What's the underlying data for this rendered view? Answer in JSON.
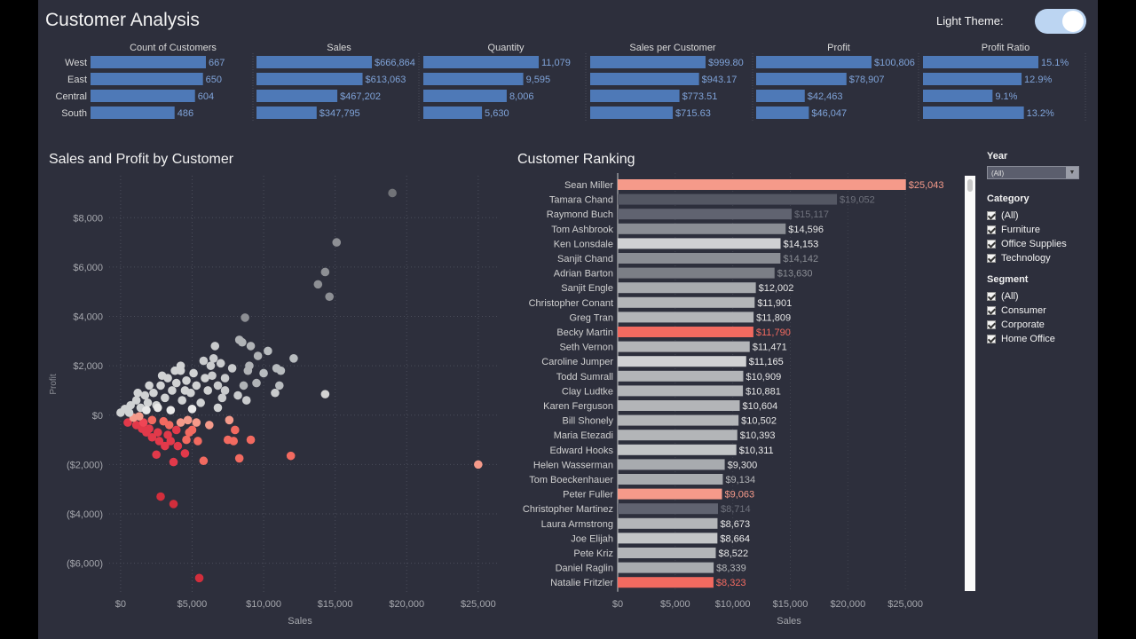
{
  "header": {
    "title": "Customer Analysis",
    "theme_label": "Light Theme:"
  },
  "kpi": {
    "regions": [
      "West",
      "East",
      "Central",
      "South"
    ],
    "metrics": [
      {
        "title": "Count of Customers",
        "values": [
          667,
          650,
          604,
          486
        ],
        "labels": [
          "667",
          "650",
          "604",
          "486"
        ]
      },
      {
        "title": "Sales",
        "values": [
          666864,
          613063,
          467202,
          347795
        ],
        "labels": [
          "$666,864",
          "$613,063",
          "$467,202",
          "$347,795"
        ]
      },
      {
        "title": "Quantity",
        "values": [
          11079,
          9595,
          8006,
          5630
        ],
        "labels": [
          "11,079",
          "9,595",
          "8,006",
          "5,630"
        ]
      },
      {
        "title": "Sales per Customer",
        "values": [
          999.8,
          943.17,
          773.51,
          715.63
        ],
        "labels": [
          "$999.80",
          "$943.17",
          "$773.51",
          "$715.63"
        ]
      },
      {
        "title": "Profit",
        "values": [
          100806,
          78907,
          42463,
          46047
        ],
        "labels": [
          "$100,806",
          "$78,907",
          "$42,463",
          "$46,047"
        ]
      },
      {
        "title": "Profit Ratio",
        "values": [
          15.1,
          12.9,
          9.1,
          13.2
        ],
        "labels": [
          "15.1%",
          "12.9%",
          "9.1%",
          "13.2%"
        ]
      }
    ],
    "bar_color": "#4e79b7",
    "label_color": "#7fa3d9"
  },
  "scatter": {
    "title": "Sales and Profit by Customer",
    "xlabel": "Sales",
    "ylabel": "Profit",
    "xlim": [
      -800,
      26500
    ],
    "ylim": [
      -7200,
      9700
    ],
    "xticks": [
      0,
      5000,
      10000,
      15000,
      20000,
      25000
    ],
    "xtick_labels": [
      "$0",
      "$5,000",
      "$10,000",
      "$15,000",
      "$20,000",
      "$25,000"
    ],
    "yticks": [
      8000,
      6000,
      4000,
      2000,
      0,
      -2000,
      -4000,
      -6000
    ],
    "ytick_labels": [
      "$8,000",
      "$6,000",
      "$4,000",
      "$2,000",
      "$0",
      "($2,000)",
      "($4,000)",
      "($6,000)"
    ]
  },
  "ranking": {
    "title": "Customer Ranking",
    "xlabel": "Sales",
    "xlim": [
      0,
      30000
    ],
    "xticks": [
      0,
      5000,
      10000,
      15000,
      20000,
      25000
    ],
    "xtick_labels": [
      "$0",
      "$5,000",
      "$10,000",
      "$15,000",
      "$20,000",
      "$25,000"
    ]
  },
  "filters": {
    "year": {
      "label": "Year",
      "value": "(All)"
    },
    "category": {
      "label": "Category",
      "options": [
        "(All)",
        "Furniture",
        "Office Supplies",
        "Technology"
      ]
    },
    "segment": {
      "label": "Segment",
      "options": [
        "(All)",
        "Consumer",
        "Corporate",
        "Home Office"
      ]
    }
  },
  "chart_data": [
    {
      "type": "scatter",
      "title": "Sales and Profit by Customer",
      "xlabel": "Sales",
      "ylabel": "Profit",
      "xlim": [
        -800,
        26500
      ],
      "ylim": [
        -7200,
        9700
      ],
      "grid": true,
      "points": [
        {
          "x": 19000,
          "y": 9000,
          "color": "#717378"
        },
        {
          "x": 15100,
          "y": 7000,
          "color": "#8d8f94"
        },
        {
          "x": 14300,
          "y": 5800,
          "color": "#8d8f94"
        },
        {
          "x": 13800,
          "y": 5300,
          "color": "#8d8f94"
        },
        {
          "x": 14600,
          "y": 4800,
          "color": "#8d8f94"
        },
        {
          "x": 8700,
          "y": 3950,
          "color": "#8d8f94"
        },
        {
          "x": 25000,
          "y": -2000,
          "color": "#f59a8a"
        },
        {
          "x": 5500,
          "y": -6600,
          "color": "#d22e3c"
        },
        {
          "x": 2800,
          "y": -3300,
          "color": "#d22e3c"
        },
        {
          "x": 3700,
          "y": -3600,
          "color": "#d22e3c"
        },
        {
          "x": 11900,
          "y": -1650,
          "color": "#f26a60"
        },
        {
          "x": 14300,
          "y": 850,
          "color": "#d4d4d4"
        },
        {
          "x": 8300,
          "y": -1750,
          "color": "#f26a60"
        },
        {
          "x": 5800,
          "y": -1850,
          "color": "#f26a60"
        },
        {
          "x": 4500,
          "y": -1550,
          "color": "#e2394a"
        },
        {
          "x": 10900,
          "y": 1900,
          "color": "#b8bcbf"
        },
        {
          "x": 11200,
          "y": 1800,
          "color": "#b8bcbf"
        },
        {
          "x": 12100,
          "y": 2300,
          "color": "#b8bcbf"
        },
        {
          "x": 10300,
          "y": 2600,
          "color": "#b8bcbf"
        },
        {
          "x": 11100,
          "y": 1200,
          "color": "#b8bcbf"
        },
        {
          "x": 10800,
          "y": 900,
          "color": "#c9cbcd"
        },
        {
          "x": 9100,
          "y": 2800,
          "color": "#b0b3b6"
        },
        {
          "x": 8500,
          "y": 2950,
          "color": "#b0b3b6"
        },
        {
          "x": 8300,
          "y": 3050,
          "color": "#b0b3b6"
        },
        {
          "x": 6600,
          "y": 2800,
          "color": "#c9cbcd"
        },
        {
          "x": 6500,
          "y": 2300,
          "color": "#c9cbcd"
        },
        {
          "x": 9000,
          "y": 2000,
          "color": "#b0b3b6"
        },
        {
          "x": 8600,
          "y": 1200,
          "color": "#b0b3b6"
        },
        {
          "x": 9500,
          "y": 1300,
          "color": "#b0b3b6"
        },
        {
          "x": 7800,
          "y": 1900,
          "color": "#c9cbcd"
        },
        {
          "x": 7300,
          "y": 1500,
          "color": "#c9cbcd"
        },
        {
          "x": 7100,
          "y": 700,
          "color": "#c9cbcd"
        },
        {
          "x": 7600,
          "y": -200,
          "color": "#f59a8a"
        },
        {
          "x": 8000,
          "y": -600,
          "color": "#f26a60"
        },
        {
          "x": 7500,
          "y": -1000,
          "color": "#f26a60"
        },
        {
          "x": 9100,
          "y": -1000,
          "color": "#f26a60"
        },
        {
          "x": 7900,
          "y": -1050,
          "color": "#f26a60"
        },
        {
          "x": 5400,
          "y": -1050,
          "color": "#f26a60"
        },
        {
          "x": 4000,
          "y": -1250,
          "color": "#e2394a"
        },
        {
          "x": 3500,
          "y": -1050,
          "color": "#e2394a"
        },
        {
          "x": 2700,
          "y": -1050,
          "color": "#e2394a"
        },
        {
          "x": 3100,
          "y": -1250,
          "color": "#e2394a"
        },
        {
          "x": 2600,
          "y": -700,
          "color": "#e2394a"
        },
        {
          "x": 3900,
          "y": -600,
          "color": "#e2394a"
        },
        {
          "x": 4800,
          "y": -700,
          "color": "#f26a60"
        },
        {
          "x": 2000,
          "y": -550,
          "color": "#e2394a"
        },
        {
          "x": 1500,
          "y": -550,
          "color": "#e2394a"
        },
        {
          "x": 1100,
          "y": -400,
          "color": "#e2394a"
        },
        {
          "x": 500,
          "y": -300,
          "color": "#e2394a"
        },
        {
          "x": 1600,
          "y": -300,
          "color": "#f04555"
        },
        {
          "x": 2200,
          "y": -200,
          "color": "#f26a60"
        },
        {
          "x": 3000,
          "y": -250,
          "color": "#f26a60"
        },
        {
          "x": 3400,
          "y": -400,
          "color": "#f26a60"
        },
        {
          "x": 4200,
          "y": -300,
          "color": "#f59a8a"
        },
        {
          "x": 5300,
          "y": -300,
          "color": "#f59a8a"
        },
        {
          "x": 6200,
          "y": -400,
          "color": "#f59a8a"
        },
        {
          "x": 4700,
          "y": -200,
          "color": "#f59a8a"
        },
        {
          "x": 900,
          "y": -100,
          "color": "#f59a8a"
        },
        {
          "x": 1300,
          "y": -50,
          "color": "#f59a8a"
        },
        {
          "x": 0,
          "y": 100,
          "color": "#d0d2d3"
        },
        {
          "x": 300,
          "y": 250,
          "color": "#d0d2d3"
        },
        {
          "x": 700,
          "y": 400,
          "color": "#d0d2d3"
        },
        {
          "x": 1100,
          "y": 600,
          "color": "#d0d2d3"
        },
        {
          "x": 1400,
          "y": 300,
          "color": "#d0d2d3"
        },
        {
          "x": 1700,
          "y": 800,
          "color": "#d0d2d3"
        },
        {
          "x": 1900,
          "y": 500,
          "color": "#d0d2d3"
        },
        {
          "x": 2300,
          "y": 900,
          "color": "#d0d2d3"
        },
        {
          "x": 2500,
          "y": 400,
          "color": "#d0d2d3"
        },
        {
          "x": 2800,
          "y": 1200,
          "color": "#d0d2d3"
        },
        {
          "x": 3100,
          "y": 700,
          "color": "#d0d2d3"
        },
        {
          "x": 3300,
          "y": 1500,
          "color": "#d0d2d3"
        },
        {
          "x": 3600,
          "y": 1000,
          "color": "#d0d2d3"
        },
        {
          "x": 3900,
          "y": 1300,
          "color": "#d0d2d3"
        },
        {
          "x": 4200,
          "y": 1800,
          "color": "#d0d2d3"
        },
        {
          "x": 4300,
          "y": 600,
          "color": "#d0d2d3"
        },
        {
          "x": 4600,
          "y": 1400,
          "color": "#d0d2d3"
        },
        {
          "x": 4900,
          "y": 900,
          "color": "#d0d2d3"
        },
        {
          "x": 5100,
          "y": 1700,
          "color": "#d0d2d3"
        },
        {
          "x": 5300,
          "y": 1200,
          "color": "#d0d2d3"
        },
        {
          "x": 5600,
          "y": 500,
          "color": "#d0d2d3"
        },
        {
          "x": 5900,
          "y": 1500,
          "color": "#d0d2d3"
        },
        {
          "x": 6100,
          "y": 1000,
          "color": "#d0d2d3"
        },
        {
          "x": 6300,
          "y": 2000,
          "color": "#c9cbcd"
        },
        {
          "x": 6800,
          "y": 1200,
          "color": "#c9cbcd"
        },
        {
          "x": 4200,
          "y": 2000,
          "color": "#d0d2d3"
        },
        {
          "x": 3800,
          "y": 1800,
          "color": "#d0d2d3"
        },
        {
          "x": 2000,
          "y": 1200,
          "color": "#d0d2d3"
        },
        {
          "x": 2600,
          "y": 300,
          "color": "#e8e8e8"
        },
        {
          "x": 1800,
          "y": 200,
          "color": "#e8e8e8"
        },
        {
          "x": 3500,
          "y": 200,
          "color": "#e8e8e8"
        },
        {
          "x": 5000,
          "y": 250,
          "color": "#e8e8e8"
        },
        {
          "x": 6800,
          "y": 300,
          "color": "#d0d2d3"
        },
        {
          "x": 7300,
          "y": 1000,
          "color": "#c9cbcd"
        },
        {
          "x": 8200,
          "y": 800,
          "color": "#c9cbcd"
        },
        {
          "x": 8800,
          "y": 600,
          "color": "#c9cbcd"
        },
        {
          "x": 8900,
          "y": 1800,
          "color": "#b0b3b6"
        },
        {
          "x": 9600,
          "y": 2400,
          "color": "#b0b3b6"
        },
        {
          "x": 10000,
          "y": 1700,
          "color": "#b8bcbf"
        },
        {
          "x": 7000,
          "y": 2100,
          "color": "#c9cbcd"
        },
        {
          "x": 5800,
          "y": 2200,
          "color": "#c9cbcd"
        },
        {
          "x": 6400,
          "y": 1600,
          "color": "#c9cbcd"
        },
        {
          "x": 4500,
          "y": 1000,
          "color": "#d0d2d3"
        },
        {
          "x": 2900,
          "y": 1600,
          "color": "#d0d2d3"
        },
        {
          "x": 1200,
          "y": 900,
          "color": "#d0d2d3"
        },
        {
          "x": 600,
          "y": 100,
          "color": "#d0d2d3"
        },
        {
          "x": 2200,
          "y": -900,
          "color": "#e2394a"
        },
        {
          "x": 2500,
          "y": -1600,
          "color": "#e2394a"
        },
        {
          "x": 3700,
          "y": -1900,
          "color": "#e2394a"
        },
        {
          "x": 1800,
          "y": -700,
          "color": "#e2394a"
        },
        {
          "x": 3300,
          "y": -800,
          "color": "#e2394a"
        },
        {
          "x": 4600,
          "y": -1000,
          "color": "#f26a60"
        },
        {
          "x": 5000,
          "y": -600,
          "color": "#f26a60"
        }
      ]
    },
    {
      "type": "bar",
      "orientation": "horizontal",
      "title": "Customer Ranking",
      "xlabel": "Sales",
      "xlim": [
        0,
        30000
      ],
      "categories": [
        "Sean Miller",
        "Tamara Chand",
        "Raymond Buch",
        "Tom Ashbrook",
        "Ken Lonsdale",
        "Sanjit Chand",
        "Adrian Barton",
        "Sanjit Engle",
        "Christopher Conant",
        "Greg Tran",
        "Becky Martin",
        "Seth Vernon",
        "Caroline Jumper",
        "Todd Sumrall",
        "Clay Ludtke",
        "Karen Ferguson",
        "Bill Shonely",
        "Maria Etezadi",
        "Edward Hooks",
        "Helen Wasserman",
        "Tom Boeckenhauer",
        "Peter Fuller",
        "Christopher Martinez",
        "Laura Armstrong",
        "Joe Elijah",
        "Pete Kriz",
        "Daniel Raglin",
        "Natalie Fritzler"
      ],
      "values": [
        25043,
        19052,
        15117,
        14596,
        14153,
        14142,
        13630,
        12002,
        11901,
        11809,
        11790,
        11471,
        11165,
        10909,
        10881,
        10604,
        10502,
        10393,
        10311,
        9300,
        9134,
        9063,
        8714,
        8673,
        8664,
        8522,
        8339,
        8323
      ],
      "labels": [
        "$25,043",
        "$19,052",
        "$15,117",
        "$14,596",
        "$14,153",
        "$14,142",
        "$13,630",
        "$12,002",
        "$11,901",
        "$11,809",
        "$11,790",
        "$11,471",
        "$11,165",
        "$10,909",
        "$10,881",
        "$10,604",
        "$10,502",
        "$10,393",
        "$10,311",
        "$9,300",
        "$9,134",
        "$9,063",
        "$8,714",
        "$8,673",
        "$8,664",
        "$8,522",
        "$8,339",
        "$8,323"
      ],
      "colors": [
        "#f59a8a",
        "#545763",
        "#606370",
        "#8a8d94",
        "#d0d1d3",
        "#8a8d94",
        "#7b7e86",
        "#a8abaf",
        "#b3b5b8",
        "#b3b5b8",
        "#f26a60",
        "#b3b5b8",
        "#d0d1d3",
        "#b3b5b8",
        "#b3b5b8",
        "#b3b5b8",
        "#b3b5b8",
        "#b3b5b8",
        "#c3c5c7",
        "#a8abaf",
        "#a8abaf",
        "#f59a8a",
        "#606370",
        "#b3b5b8",
        "#c3c5c7",
        "#b3b5b8",
        "#a8abaf",
        "#f26a60"
      ],
      "label_colors": [
        "#f59a8a",
        "#6e717c",
        "#6e717c",
        "#e6e6e6",
        "#f2f2f2",
        "#8a8d94",
        "#8a8d94",
        "#e6e6e6",
        "#e6e6e6",
        "#e6e6e6",
        "#f26a60",
        "#e6e6e6",
        "#f2f2f2",
        "#e6e6e6",
        "#e6e6e6",
        "#e6e6e6",
        "#e6e6e6",
        "#e6e6e6",
        "#f2f2f2",
        "#e6e6e6",
        "#b3b5b8",
        "#f59a8a",
        "#6e717c",
        "#e6e6e6",
        "#f2f2f2",
        "#e6e6e6",
        "#b3b5b8",
        "#f26a60"
      ]
    }
  ]
}
